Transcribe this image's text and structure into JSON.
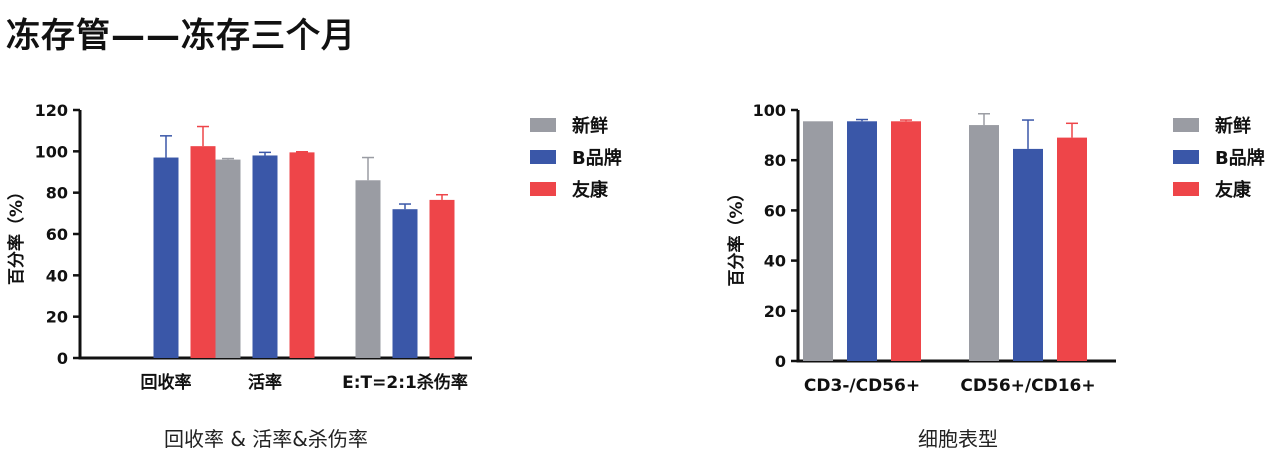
{
  "page": {
    "title": "冻存管——冻存三个月"
  },
  "colors": {
    "新鲜": "#9a9ca3",
    "B品牌": "#3a57a8",
    "友康": "#ee4549"
  },
  "chart_data": [
    {
      "type": "bar",
      "caption": "回收率 & 活率&杀伤率",
      "ylabel": "百分率（%）",
      "ylim": [
        0,
        120
      ],
      "yticks": [
        0,
        20,
        40,
        60,
        80,
        100,
        120
      ],
      "categories": [
        "回收率",
        "活率",
        "E:T=2:1杀伤率"
      ],
      "series": [
        {
          "name": "新鲜",
          "values": [
            null,
            96,
            86
          ],
          "errors": [
            null,
            0.5,
            11
          ]
        },
        {
          "name": "B品牌",
          "values": [
            97,
            98,
            72
          ],
          "errors": [
            10.5,
            1.5,
            2.5
          ]
        },
        {
          "name": "友康",
          "values": [
            102.5,
            99.5,
            76.5
          ],
          "errors": [
            9.5,
            0.3,
            2.5
          ]
        }
      ],
      "legend": "right"
    },
    {
      "type": "bar",
      "caption": "细胞表型",
      "ylabel": "百分率（%）",
      "ylim": [
        0,
        100
      ],
      "yticks": [
        0,
        20,
        40,
        60,
        80,
        100
      ],
      "categories": [
        "CD3-/CD56+",
        "CD56+/CD16+"
      ],
      "series": [
        {
          "name": "新鲜",
          "values": [
            95.5,
            94
          ],
          "errors": [
            0,
            4.5
          ]
        },
        {
          "name": "B品牌",
          "values": [
            95.5,
            84.5
          ],
          "errors": [
            0.7,
            11.5
          ]
        },
        {
          "name": "友康",
          "values": [
            95.5,
            89
          ],
          "errors": [
            0.5,
            5.7
          ]
        }
      ],
      "legend": "right"
    }
  ]
}
